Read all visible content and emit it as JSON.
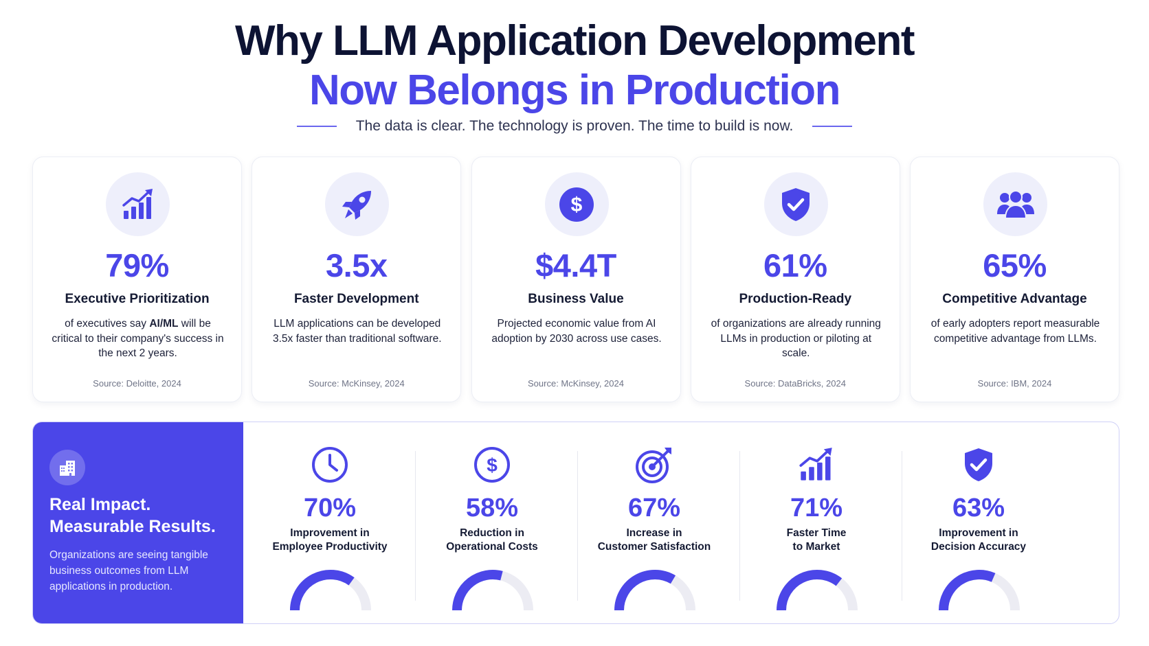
{
  "header": {
    "title_line1": "Why LLM Application Development",
    "title_line2": "Now Belongs in Production",
    "subtitle": "The data is clear. The technology is proven. The time to build is now."
  },
  "colors": {
    "accent": "#4b46e8",
    "dark": "#0d1333",
    "light": "#eeeffb"
  },
  "cards": [
    {
      "icon": "growth-chart-icon",
      "stat": "79%",
      "label": "Executive Prioritization",
      "desc_pre": "of executives say ",
      "desc_bold": "AI/ML",
      "desc_post": " will be critical to their company's success in the next 2 years.",
      "source": "Source: Deloitte, 2024"
    },
    {
      "icon": "rocket-icon",
      "stat": "3.5x",
      "label": "Faster Development",
      "desc_pre": "LLM applications can be developed 3.5x faster than traditional software.",
      "desc_bold": "",
      "desc_post": "",
      "source": "Source: McKinsey, 2024"
    },
    {
      "icon": "dollar-icon",
      "stat": "$4.4T",
      "label": "Business Value",
      "desc_pre": "Projected economic value from AI adoption by 2030 across use cases.",
      "desc_bold": "",
      "desc_post": "",
      "source": "Source: McKinsey, 2024"
    },
    {
      "icon": "shield-check-icon",
      "stat": "61%",
      "label": "Production-Ready",
      "desc_pre": "of organizations are already running LLMs in production or piloting at scale.",
      "desc_bold": "",
      "desc_post": "",
      "source": "Source: DataBricks, 2024"
    },
    {
      "icon": "users-icon",
      "stat": "65%",
      "label": "Competitive Advantage",
      "desc_pre": "of early adopters report measurable competitive advantage from LLMs.",
      "desc_bold": "",
      "desc_post": "",
      "source": "Source: IBM, 2024"
    }
  ],
  "impact": {
    "icon": "building-icon",
    "title_line1": "Real Impact.",
    "title_line2": "Measurable Results.",
    "description": "Organizations are seeing tangible business outcomes from LLM applications in production.",
    "metrics": [
      {
        "icon": "clock-icon",
        "value": "70%",
        "fraction": 0.7,
        "label_line1": "Improvement in",
        "label_line2": "Employee Productivity"
      },
      {
        "icon": "dollar-circle-icon",
        "value": "58%",
        "fraction": 0.58,
        "label_line1": "Reduction in",
        "label_line2": "Operational Costs"
      },
      {
        "icon": "target-icon",
        "value": "67%",
        "fraction": 0.67,
        "label_line1": "Increase in",
        "label_line2": "Customer Satisfaction"
      },
      {
        "icon": "growth-chart-icon",
        "value": "71%",
        "fraction": 0.71,
        "label_line1": "Faster Time",
        "label_line2": "to Market"
      },
      {
        "icon": "shield-check-icon",
        "value": "63%",
        "fraction": 0.63,
        "label_line1": "Improvement in",
        "label_line2": "Decision Accuracy"
      }
    ]
  }
}
